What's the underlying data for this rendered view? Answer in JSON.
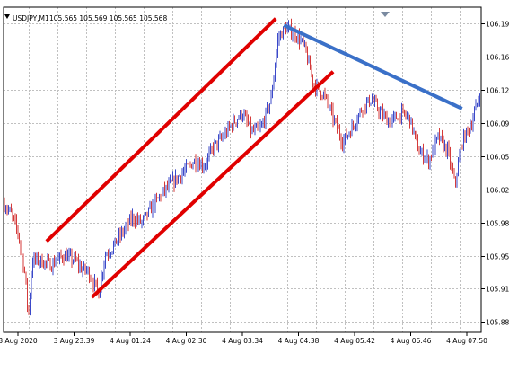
{
  "window": {
    "symbol_label": "USDJPY,M1",
    "ohlc": "105.565 105.569 105.565 105.568",
    "menu_icon": "triangle-down-icon",
    "one_click_icon": "triangle-down-icon"
  },
  "colors": {
    "grid": "#c0c0c0",
    "bull": "#3b49c9",
    "bear": "#d43a3a",
    "channel": "#e00000",
    "trendline": "#3a70c8",
    "axis": "#000000"
  },
  "chart_data": {
    "type": "candlestick",
    "title": "USDJPY,M1",
    "y_ticks": [
      "106.195",
      "106.160",
      "106.125",
      "106.090",
      "106.055",
      "106.020",
      "105.985",
      "105.950",
      "105.915",
      "105.880"
    ],
    "x_ticks": [
      "3 Aug 2020",
      "3 Aug 23:39",
      "4 Aug 01:24",
      "4 Aug 02:30",
      "4 Aug 03:34",
      "4 Aug 04:38",
      "4 Aug 05:42",
      "4 Aug 06:46",
      "4 Aug 07:50"
    ],
    "ylim": [
      105.869,
      106.212
    ],
    "price_path": [
      [
        0,
        106.005
      ],
      [
        0.015,
        105.995
      ],
      [
        0.03,
        105.975
      ],
      [
        0.045,
        105.93
      ],
      [
        0.052,
        105.885
      ],
      [
        0.06,
        105.945
      ],
      [
        0.075,
        105.945
      ],
      [
        0.1,
        105.94
      ],
      [
        0.125,
        105.95
      ],
      [
        0.15,
        105.945
      ],
      [
        0.165,
        105.935
      ],
      [
        0.175,
        105.935
      ],
      [
        0.19,
        105.92
      ],
      [
        0.2,
        105.91
      ],
      [
        0.212,
        105.95
      ],
      [
        0.23,
        105.96
      ],
      [
        0.25,
        105.975
      ],
      [
        0.27,
        105.99
      ],
      [
        0.29,
        105.985
      ],
      [
        0.31,
        106.0
      ],
      [
        0.33,
        106.015
      ],
      [
        0.36,
        106.03
      ],
      [
        0.4,
        106.05
      ],
      [
        0.42,
        106.045
      ],
      [
        0.44,
        106.065
      ],
      [
        0.46,
        106.075
      ],
      [
        0.48,
        106.09
      ],
      [
        0.5,
        106.1
      ],
      [
        0.52,
        106.08
      ],
      [
        0.54,
        106.085
      ],
      [
        0.56,
        106.115
      ],
      [
        0.575,
        106.18
      ],
      [
        0.59,
        106.19
      ],
      [
        0.61,
        106.185
      ],
      [
        0.63,
        106.17
      ],
      [
        0.65,
        106.13
      ],
      [
        0.67,
        106.12
      ],
      [
        0.69,
        106.095
      ],
      [
        0.71,
        106.07
      ],
      [
        0.73,
        106.085
      ],
      [
        0.75,
        106.105
      ],
      [
        0.77,
        106.115
      ],
      [
        0.79,
        106.1
      ],
      [
        0.81,
        106.09
      ],
      [
        0.83,
        106.1
      ],
      [
        0.85,
        106.095
      ],
      [
        0.87,
        106.06
      ],
      [
        0.89,
        106.05
      ],
      [
        0.91,
        106.075
      ],
      [
        0.93,
        106.06
      ],
      [
        0.945,
        106.025
      ],
      [
        0.96,
        106.07
      ],
      [
        0.98,
        106.09
      ],
      [
        1.0,
        106.125
      ]
    ],
    "annotations": [
      {
        "type": "channel-upper",
        "from": [
          0.09,
          105.965
        ],
        "to": [
          0.57,
          106.2
        ]
      },
      {
        "type": "channel-lower",
        "from": [
          0.185,
          105.906
        ],
        "to": [
          0.69,
          106.144
        ]
      },
      {
        "type": "trendline",
        "from": [
          0.587,
          106.193
        ],
        "to": [
          0.96,
          106.105
        ]
      }
    ]
  }
}
